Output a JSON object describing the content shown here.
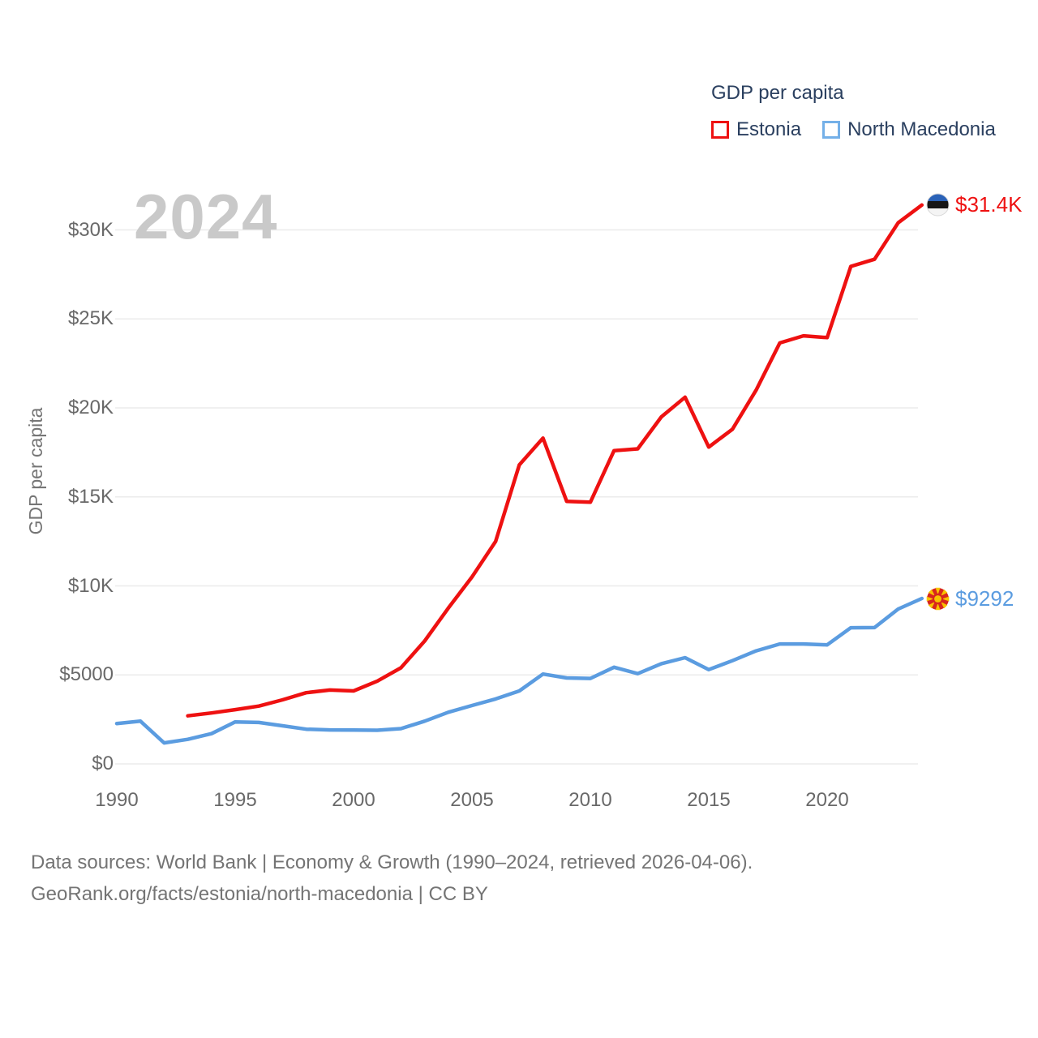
{
  "watermark": "2024",
  "legend": {
    "title": "GDP per capita",
    "items": [
      {
        "label": "Estonia",
        "color": "#ee1111"
      },
      {
        "label": "North Macedonia",
        "color": "#74b0e8"
      }
    ]
  },
  "y_axis": {
    "label": "GDP per capita",
    "ticks": [
      {
        "label": "$0",
        "value": 0
      },
      {
        "label": "$5000",
        "value": 5000
      },
      {
        "label": "$10K",
        "value": 10000
      },
      {
        "label": "$15K",
        "value": 15000
      },
      {
        "label": "$20K",
        "value": 20000
      },
      {
        "label": "$25K",
        "value": 25000
      },
      {
        "label": "$30K",
        "value": 30000
      }
    ]
  },
  "x_axis": {
    "ticks": [
      "1990",
      "1995",
      "2000",
      "2005",
      "2010",
      "2015",
      "2020"
    ]
  },
  "end_labels": [
    {
      "series": "Estonia",
      "text": "$31.4K",
      "value": 31400,
      "color": "#ee1111",
      "flag": "estonia-flag-icon"
    },
    {
      "series": "North Macedonia",
      "text": "$9292",
      "value": 9292,
      "color": "#5b9ce0",
      "flag": "north-macedonia-flag-icon"
    }
  ],
  "footer": {
    "line1": "Data sources: World Bank | Economy & Growth (1990–2024, retrieved 2026-04-06).",
    "line2": "GeoRank.org/facts/estonia/north-macedonia | CC BY"
  },
  "colors": {
    "grid": "#ebebeb",
    "tick_text": "#696969",
    "axis_title_text": "#757575",
    "legend_text": "#2a3f5f",
    "watermark": "#c9c9c9",
    "footer_text": "#747474",
    "estonia_line": "#ee1111",
    "north_macedonia_line": "#5b9ce0"
  },
  "chart_data": {
    "type": "line",
    "title": "GDP per capita",
    "ylabel": "GDP per capita",
    "xlim": [
      1990,
      2024
    ],
    "ylim": [
      0,
      32000
    ],
    "grid": true,
    "legend_position": "top-right",
    "series": [
      {
        "name": "Estonia",
        "color": "#ee1111",
        "x": [
          1993,
          1994,
          1995,
          1996,
          1997,
          1998,
          1999,
          2000,
          2001,
          2002,
          2003,
          2004,
          2005,
          2006,
          2007,
          2008,
          2009,
          2010,
          2011,
          2012,
          2013,
          2014,
          2015,
          2016,
          2017,
          2018,
          2019,
          2020,
          2021,
          2022,
          2023,
          2024
        ],
        "values": [
          2700,
          2860,
          3050,
          3250,
          3600,
          4000,
          4150,
          4100,
          4650,
          5400,
          6900,
          8750,
          10500,
          12500,
          16800,
          18300,
          14750,
          14700,
          17600,
          17700,
          19500,
          20600,
          17800,
          18800,
          21000,
          23650,
          24050,
          23950,
          27950,
          28350,
          30400,
          31400
        ]
      },
      {
        "name": "North Macedonia",
        "color": "#5b9ce0",
        "x": [
          1990,
          1991,
          1992,
          1993,
          1994,
          1995,
          1996,
          1997,
          1998,
          1999,
          2000,
          2001,
          2002,
          2003,
          2004,
          2005,
          2006,
          2007,
          2008,
          2009,
          2010,
          2011,
          2012,
          2013,
          2014,
          2015,
          2016,
          2017,
          2018,
          2019,
          2020,
          2021,
          2022,
          2023,
          2024
        ],
        "values": [
          2270,
          2400,
          1180,
          1380,
          1700,
          2360,
          2330,
          2140,
          1950,
          1910,
          1900,
          1890,
          1980,
          2400,
          2900,
          3280,
          3650,
          4100,
          5050,
          4830,
          4800,
          5430,
          5070,
          5630,
          5970,
          5300,
          5800,
          6350,
          6740,
          6740,
          6690,
          7650,
          7660,
          8700,
          9292
        ]
      }
    ]
  }
}
